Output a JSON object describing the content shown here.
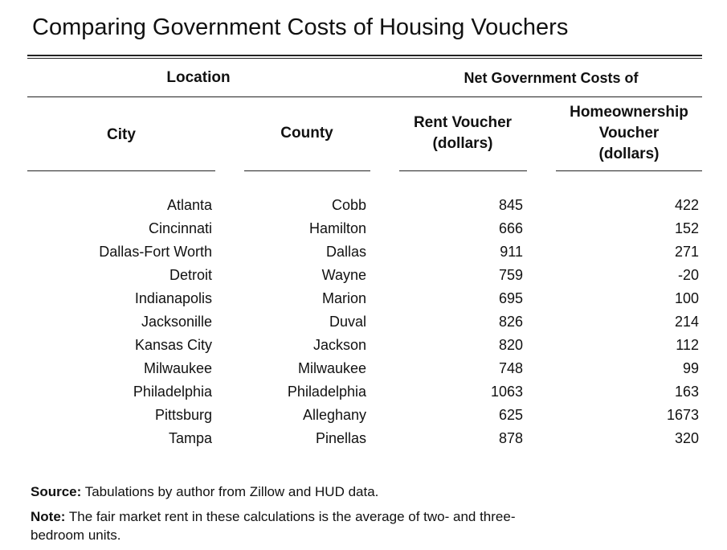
{
  "title": "Comparing Government Costs of Housing Vouchers",
  "header": {
    "location": "Location",
    "net_costs": "Net Government Costs of",
    "city": "City",
    "county": "County",
    "rent_voucher_line1": "Rent Voucher",
    "rent_voucher_line2": "(dollars)",
    "home_voucher_line1": "Homeownership",
    "home_voucher_line2": "Voucher",
    "home_voucher_line3": "(dollars)"
  },
  "rows": [
    {
      "city": "Atlanta",
      "county": "Cobb",
      "rent": "845",
      "home": "422"
    },
    {
      "city": "Cincinnati",
      "county": "Hamilton",
      "rent": "666",
      "home": "152"
    },
    {
      "city": "Dallas-Fort Worth",
      "county": "Dallas",
      "rent": "911",
      "home": "271"
    },
    {
      "city": "Detroit",
      "county": "Wayne",
      "rent": "759",
      "home": "-20"
    },
    {
      "city": "Indianapolis",
      "county": "Marion",
      "rent": "695",
      "home": "100"
    },
    {
      "city": "Jacksonille",
      "county": "Duval",
      "rent": "826",
      "home": "214"
    },
    {
      "city": "Kansas City",
      "county": "Jackson",
      "rent": "820",
      "home": "112"
    },
    {
      "city": "Milwaukee",
      "county": "Milwaukee",
      "rent": "748",
      "home": "99"
    },
    {
      "city": "Philadelphia",
      "county": "Philadelphia",
      "rent": "1063",
      "home": "163"
    },
    {
      "city": "Pittsburg",
      "county": "Alleghany",
      "rent": "625",
      "home": "1673"
    },
    {
      "city": "Tampa",
      "county": "Pinellas",
      "rent": "878",
      "home": "320"
    }
  ],
  "footer": {
    "source_label": "Source:",
    "source_text": " Tabulations by author from Zillow and HUD data.",
    "note_label": "Note:",
    "note_text": " The fair market rent in these calculations is the average of two- and three-bedroom units."
  }
}
